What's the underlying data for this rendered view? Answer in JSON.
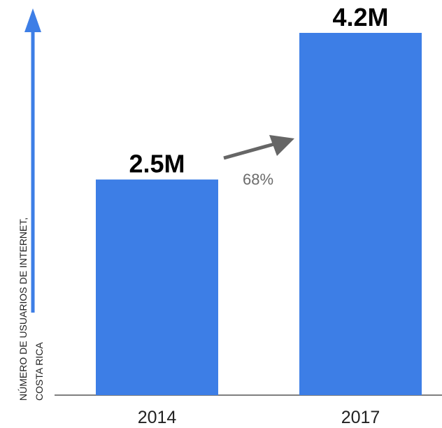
{
  "chart_data": {
    "type": "bar",
    "categories": [
      "2014",
      "2017"
    ],
    "values": [
      2.5,
      4.2
    ],
    "value_labels": [
      "2.5M",
      "4.2M"
    ],
    "unit": "M",
    "ylabel_lines": [
      "NÚMERO DE USUARIOS DE INTERNET,",
      "COSTA RICA"
    ],
    "xlabel": "",
    "title": "",
    "ylim": [
      0,
      4.2
    ],
    "grid": false,
    "bar_color": "#3d7ee6",
    "growth": {
      "label": "68%",
      "arrow_color": "#666666",
      "from": "2014",
      "to": "2017"
    },
    "axis_arrow_color": "#3d7ee6"
  }
}
